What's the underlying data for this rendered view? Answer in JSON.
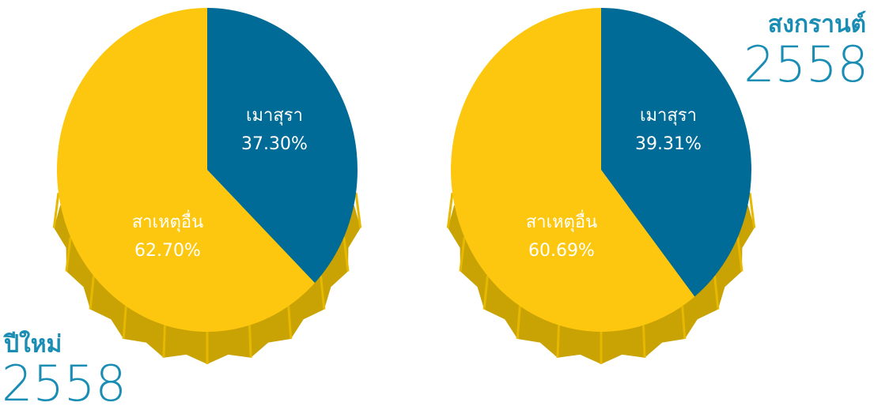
{
  "chart_data": [
    {
      "type": "pie",
      "title": "ปีใหม่",
      "subtitle": "2558",
      "categories": [
        "เมาสุรา",
        "สาเหตุอื่น"
      ],
      "values": [
        37.3,
        62.7
      ],
      "value_labels": [
        "37.30%",
        "62.70%"
      ],
      "colors": [
        "#006b96",
        "#fcc70e"
      ]
    },
    {
      "type": "pie",
      "title": "สงกรานต์",
      "subtitle": "2558",
      "categories": [
        "เมาสุรา",
        "สาเหตุอื่น"
      ],
      "values": [
        39.31,
        60.69
      ],
      "value_labels": [
        "39.31%",
        "60.69%"
      ],
      "colors": [
        "#006b96",
        "#fcc70e"
      ]
    }
  ]
}
